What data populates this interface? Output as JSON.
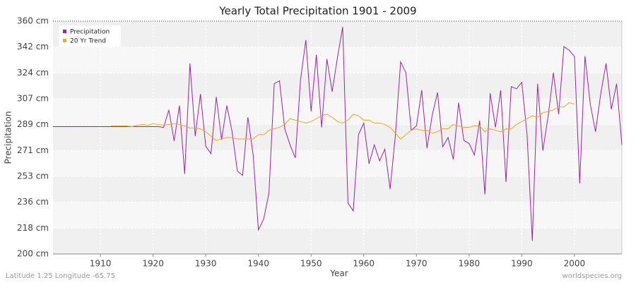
{
  "chart_data": {
    "type": "line",
    "title": "Yearly Total Precipitation 1901 - 2009",
    "x_label": "Year",
    "y_label": "Precipitation",
    "footer_left": "Latitude 1.25 Longitude -65.75",
    "footer_right": "worldspecies.org",
    "x": [
      1901,
      1902,
      1903,
      1904,
      1905,
      1906,
      1907,
      1908,
      1909,
      1910,
      1911,
      1912,
      1913,
      1914,
      1915,
      1916,
      1917,
      1918,
      1919,
      1920,
      1921,
      1922,
      1923,
      1924,
      1925,
      1926,
      1927,
      1928,
      1929,
      1930,
      1931,
      1932,
      1933,
      1934,
      1935,
      1936,
      1937,
      1938,
      1939,
      1940,
      1941,
      1942,
      1943,
      1944,
      1945,
      1946,
      1947,
      1948,
      1949,
      1950,
      1951,
      1952,
      1953,
      1954,
      1955,
      1956,
      1957,
      1958,
      1959,
      1960,
      1961,
      1962,
      1963,
      1964,
      1965,
      1966,
      1967,
      1968,
      1969,
      1970,
      1971,
      1972,
      1973,
      1974,
      1975,
      1976,
      1977,
      1978,
      1979,
      1980,
      1981,
      1982,
      1983,
      1984,
      1985,
      1986,
      1987,
      1988,
      1989,
      1990,
      1991,
      1992,
      1993,
      1994,
      1995,
      1996,
      1997,
      1998,
      1999,
      2000,
      2001,
      2002,
      2003,
      2004,
      2005,
      2006,
      2007,
      2008,
      2009
    ],
    "series": [
      {
        "name": "Precipitation",
        "color": "#a020a8",
        "values": [
          287.5,
          287.5,
          287.5,
          287.5,
          287.5,
          287.5,
          287.5,
          287.5,
          287.5,
          287.5,
          287.5,
          287.5,
          287.5,
          287.5,
          287.5,
          287.5,
          287.5,
          287.5,
          287.5,
          287.5,
          287.5,
          287,
          299,
          277.6,
          302,
          255,
          331,
          281,
          310,
          274,
          269,
          308,
          278.5,
          302,
          284,
          257,
          254,
          294,
          268,
          216.5,
          224,
          242,
          317,
          319,
          286,
          275,
          266,
          320,
          347,
          298,
          337,
          287,
          334,
          311.5,
          335,
          356,
          235,
          229.6,
          282,
          290,
          262,
          275,
          264,
          272,
          244.6,
          281.5,
          332,
          324.6,
          285,
          288,
          312.5,
          272.7,
          295.5,
          311,
          273.7,
          280,
          265,
          304,
          278,
          276,
          268,
          291.6,
          241,
          310.5,
          287,
          312.5,
          249.5,
          315,
          313.5,
          318,
          282,
          209,
          317,
          271,
          294.5,
          324.6,
          296,
          342.5,
          340,
          335.8,
          248.5,
          336,
          303,
          284,
          310.5,
          331,
          299.4,
          317,
          275
        ]
      },
      {
        "name": "20 Yr Trend",
        "color": "#ffa020",
        "values": [
          null,
          null,
          null,
          null,
          null,
          null,
          null,
          null,
          null,
          null,
          null,
          288,
          288,
          288,
          288,
          287.5,
          288.5,
          289,
          288.5,
          289.5,
          289,
          288.5,
          289,
          289.5,
          289,
          288,
          286.5,
          286.5,
          286,
          284,
          281,
          278,
          279,
          280,
          280,
          279,
          279,
          279,
          279,
          282,
          282,
          285,
          286,
          287,
          289,
          293,
          292,
          291,
          290,
          291,
          293,
          295,
          296,
          294,
          291,
          290,
          292,
          296,
          295,
          292,
          292,
          290,
          290,
          289,
          287,
          283,
          279,
          282,
          285,
          286,
          285,
          285,
          283,
          284,
          286,
          286,
          289,
          288,
          287,
          287,
          288,
          288,
          284,
          286,
          285,
          284,
          286,
          286,
          289,
          291,
          293,
          295,
          294,
          297,
          298,
          299,
          301,
          301,
          304,
          303,
          null,
          null,
          null,
          null,
          null,
          null,
          null,
          null,
          null
        ]
      }
    ],
    "xlim": [
      1901,
      2009
    ],
    "xticks": [
      1910,
      1920,
      1930,
      1940,
      1950,
      1960,
      1970,
      1980,
      1990,
      2000
    ],
    "ylim": [
      200,
      360
    ],
    "yticks": [
      {
        "value": 200,
        "label": "200 cm"
      },
      {
        "value": 217.8,
        "label": "218 cm"
      },
      {
        "value": 235.6,
        "label": "236 cm"
      },
      {
        "value": 253.3,
        "label": "253 cm"
      },
      {
        "value": 271.1,
        "label": "271 cm"
      },
      {
        "value": 288.9,
        "label": "289 cm"
      },
      {
        "value": 306.7,
        "label": "307 cm"
      },
      {
        "value": 324.4,
        "label": "324 cm"
      },
      {
        "value": 342.2,
        "label": "342 cm"
      },
      {
        "value": 360,
        "label": "360 cm"
      }
    ],
    "grid": true,
    "legend": "top-left"
  }
}
